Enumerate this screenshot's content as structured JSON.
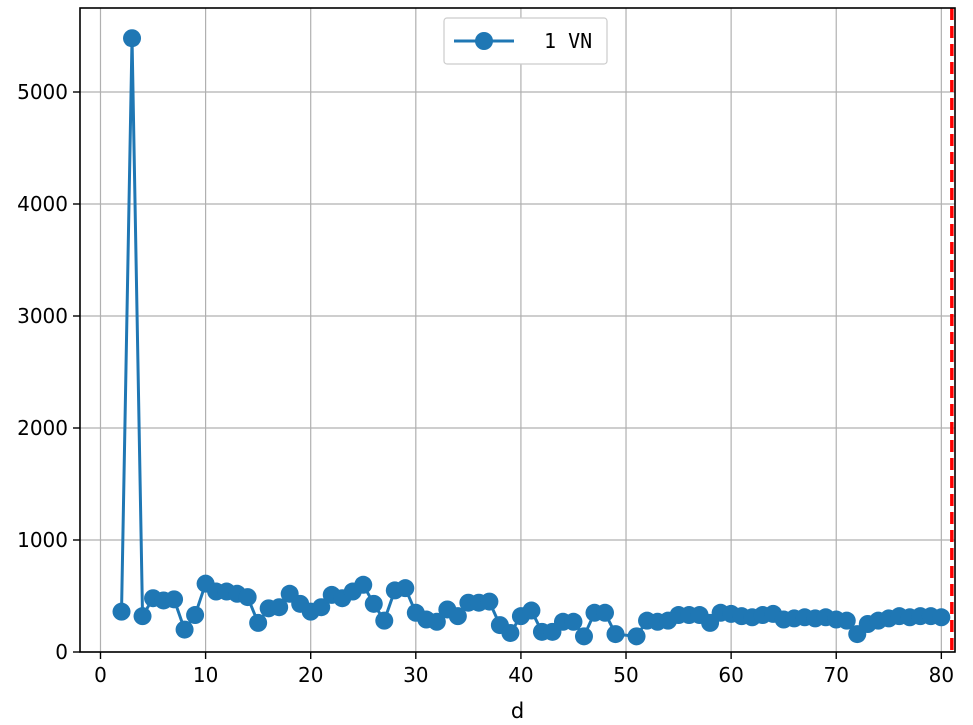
{
  "chart_data": {
    "type": "line",
    "xlabel": "d",
    "ylabel": "",
    "xlim": [
      -1.95,
      81.3
    ],
    "ylim": [
      0,
      5750
    ],
    "xticks": [
      0,
      10,
      20,
      30,
      40,
      50,
      60,
      70,
      80
    ],
    "yticks": [
      0,
      1000,
      2000,
      3000,
      4000,
      5000
    ],
    "grid": true,
    "legend_position": "top-center",
    "series": [
      {
        "name": "1 VN",
        "color": "#1f77b4",
        "marker": "circle",
        "x": [
          2,
          3,
          4,
          5,
          6,
          7,
          8,
          9,
          10,
          11,
          12,
          13,
          14,
          15,
          16,
          17,
          18,
          19,
          20,
          21,
          22,
          23,
          24,
          25,
          26,
          27,
          28,
          29,
          30,
          31,
          32,
          33,
          34,
          35,
          36,
          37,
          38,
          39,
          40,
          41,
          42,
          43,
          44,
          45,
          46,
          47,
          48,
          49,
          51,
          52,
          53,
          54,
          55,
          56,
          57,
          58,
          59,
          60,
          61,
          62,
          63,
          64,
          65,
          66,
          67,
          68,
          69,
          70,
          71,
          72,
          73,
          74,
          75,
          76,
          77,
          78,
          79,
          80
        ],
        "y": [
          360,
          5480,
          320,
          480,
          460,
          470,
          200,
          330,
          610,
          540,
          540,
          520,
          490,
          260,
          390,
          400,
          520,
          430,
          360,
          400,
          510,
          480,
          540,
          600,
          430,
          280,
          550,
          570,
          350,
          290,
          270,
          380,
          320,
          440,
          440,
          450,
          240,
          170,
          320,
          370,
          180,
          180,
          270,
          270,
          140,
          350,
          350,
          160,
          140,
          280,
          270,
          280,
          330,
          330,
          330,
          260,
          350,
          340,
          320,
          310,
          330,
          340,
          290,
          300,
          310,
          300,
          310,
          290,
          280,
          160,
          250,
          280,
          300,
          320,
          310,
          320,
          320,
          310
        ]
      }
    ],
    "vline": {
      "x": 81,
      "color": "#ff0000",
      "style": "dashed"
    }
  }
}
